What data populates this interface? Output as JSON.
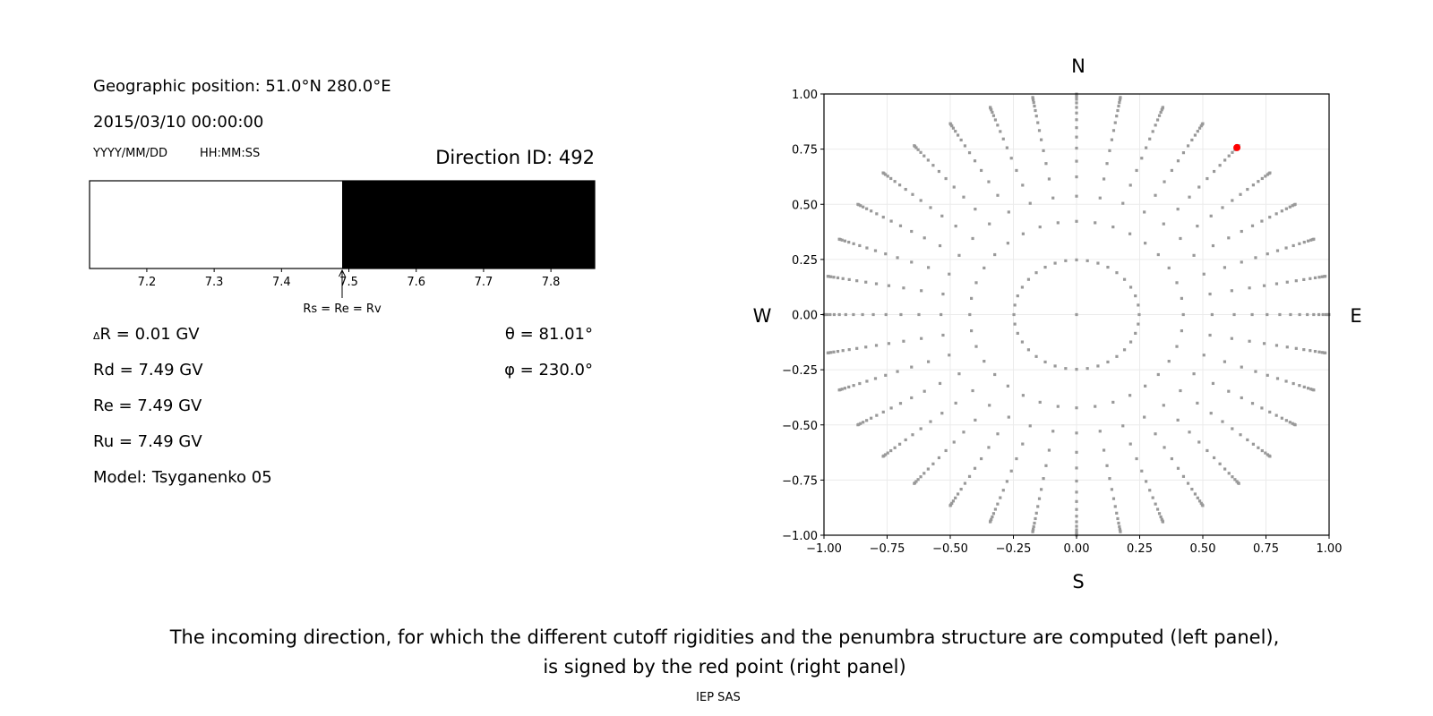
{
  "left_panel": {
    "geo_position": "Geographic position: 51.0°N 280.0°E",
    "datetime": "2015/03/10 00:00:00",
    "date_format": "YYYY/MM/DD",
    "time_format": "HH:MM:SS",
    "direction_id": "Direction ID: 492",
    "delta_r_symbol": "Δ",
    "delta_r": "R = 0.01 GV",
    "rd": "Rd = 7.49 GV",
    "re": "Re = 7.49 GV",
    "ru": "Ru = 7.49 GV",
    "model": "Model: Tsyganenko 05",
    "theta": "θ = 81.01°",
    "phi": "φ = 230.0°"
  },
  "caption": {
    "line1": "The incoming direction, for which the different cutoff rigidities and the penumbra structure are computed (left panel),",
    "line2": "is signed by the red point (right panel)",
    "credit": "IEP SAS"
  },
  "chart_data": [
    {
      "type": "bar",
      "xlim": [
        7.115,
        7.865
      ],
      "segments": [
        {
          "from": 7.115,
          "to": 7.49,
          "color": "#ffffff"
        },
        {
          "from": 7.49,
          "to": 7.865,
          "color": "#000000"
        }
      ],
      "x_ticks": [
        7.2,
        7.3,
        7.4,
        7.5,
        7.6,
        7.7,
        7.8
      ],
      "x_tick_labels": [
        "7.2",
        "7.3",
        "7.4",
        "7.5",
        "7.6",
        "7.7",
        "7.8"
      ],
      "annotation": {
        "x": 7.49,
        "text": "Rs = Re = Rv"
      }
    },
    {
      "type": "scatter",
      "xlim": [
        -1.0,
        1.0
      ],
      "ylim": [
        -1.0,
        1.0
      ],
      "grid": true,
      "x_ticks": [
        -1.0,
        -0.75,
        -0.5,
        -0.25,
        0.0,
        0.25,
        0.5,
        0.75,
        1.0
      ],
      "x_tick_labels": [
        "−1.00",
        "−0.75",
        "−0.50",
        "−0.25",
        "0.00",
        "0.25",
        "0.50",
        "0.75",
        "1.00"
      ],
      "y_ticks": [
        -1.0,
        -0.75,
        -0.5,
        -0.25,
        0.0,
        0.25,
        0.5,
        0.75,
        1.0
      ],
      "y_tick_labels": [
        "−1.00",
        "−0.75",
        "−0.50",
        "−0.25",
        "0.00",
        "0.25",
        "0.50",
        "0.75",
        "1.00"
      ],
      "compass": {
        "north": "N",
        "south": "S",
        "west": "W",
        "east": "E"
      },
      "grid_points": {
        "center": [
          0.0,
          0.0
        ],
        "ring_radii": [
          0.248,
          0.4227,
          0.5367,
          0.6242,
          0.6953,
          0.7545,
          0.8047,
          0.8472,
          0.8833,
          0.9138,
          0.9391,
          0.9596,
          0.9758,
          0.9877,
          0.9956,
          0.9995
        ],
        "azimuth_step_deg": 10,
        "color": "#999999"
      },
      "highlight_point": {
        "x": 0.635,
        "y": 0.757,
        "color": "#ff0000"
      }
    }
  ]
}
